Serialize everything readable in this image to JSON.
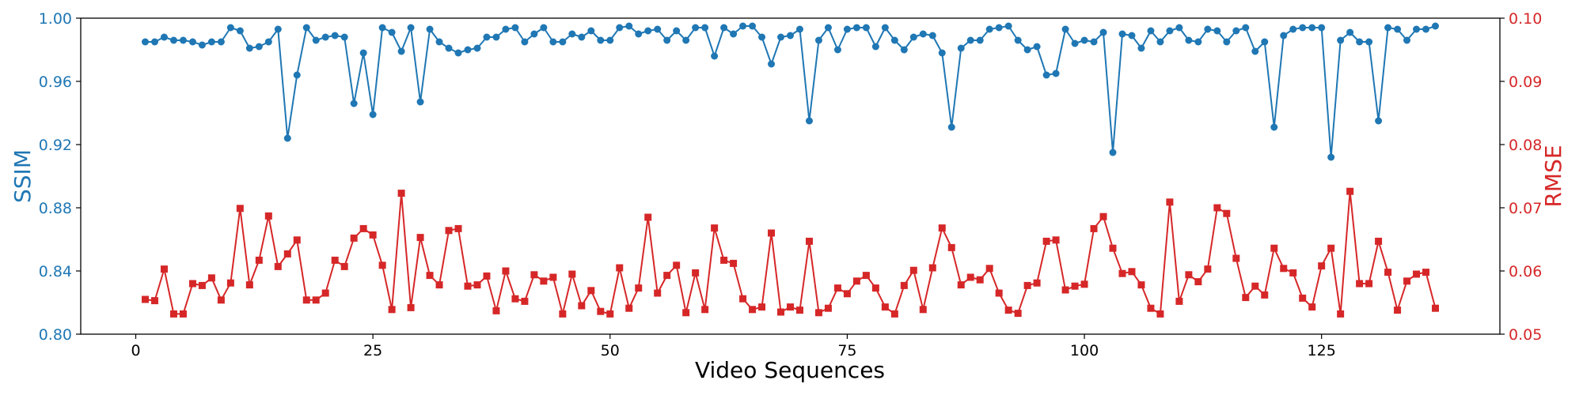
{
  "chart_data": {
    "type": "line",
    "xlabel": "Video Sequences",
    "ylabel_left": "SSIM",
    "ylabel_right": "RMSE",
    "xlim": [
      -5.8,
      143.8
    ],
    "x_ticks": [
      "0",
      "25",
      "50",
      "75",
      "100",
      "125"
    ],
    "x_tick_values": [
      0,
      25,
      50,
      75,
      100,
      125
    ],
    "ylim_left": [
      0.8,
      1.0
    ],
    "y_ticks_left": [
      "0.80",
      "0.84",
      "0.88",
      "0.92",
      "0.96",
      "1.00"
    ],
    "ylim_right": [
      0.05,
      0.1
    ],
    "y_ticks_right": [
      "0.05",
      "0.06",
      "0.07",
      "0.08",
      "0.09",
      "0.10"
    ],
    "colors": {
      "ssim": "#1f77b4",
      "rmse": "#d62728",
      "axes": "#000000"
    },
    "grid": false,
    "series": [
      {
        "axis": "left",
        "marker": "circle",
        "x_start": 1,
        "values": [
          0.985,
          0.985,
          0.988,
          0.986,
          0.986,
          0.985,
          0.983,
          0.985,
          0.985,
          0.994,
          0.992,
          0.981,
          0.982,
          0.985,
          0.993,
          0.924,
          0.964,
          0.994,
          0.986,
          0.988,
          0.989,
          0.988,
          0.946,
          0.978,
          0.939,
          0.994,
          0.991,
          0.979,
          0.994,
          0.947,
          0.993,
          0.985,
          0.981,
          0.978,
          0.98,
          0.981,
          0.988,
          0.988,
          0.993,
          0.994,
          0.985,
          0.99,
          0.994,
          0.985,
          0.985,
          0.99,
          0.988,
          0.992,
          0.986,
          0.986,
          0.994,
          0.995,
          0.99,
          0.992,
          0.993,
          0.986,
          0.992,
          0.986,
          0.994,
          0.994,
          0.976,
          0.994,
          0.99,
          0.995,
          0.995,
          0.988,
          0.971,
          0.988,
          0.989,
          0.993,
          0.935,
          0.986,
          0.994,
          0.98,
          0.993,
          0.994,
          0.994,
          0.982,
          0.994,
          0.986,
          0.98,
          0.988,
          0.99,
          0.989,
          0.978,
          0.931,
          0.981,
          0.986,
          0.986,
          0.993,
          0.994,
          0.995,
          0.986,
          0.98,
          0.982,
          0.964,
          0.965,
          0.993,
          0.984,
          0.986,
          0.985,
          0.991,
          0.915,
          0.99,
          0.989,
          0.981,
          0.992,
          0.985,
          0.992,
          0.994,
          0.986,
          0.985,
          0.993,
          0.992,
          0.985,
          0.992,
          0.994,
          0.979,
          0.985,
          0.931,
          0.989,
          0.993,
          0.994,
          0.994,
          0.994,
          0.912,
          0.986,
          0.991,
          0.985,
          0.985,
          0.935,
          0.994,
          0.993,
          0.986,
          0.993,
          0.993,
          0.995
        ]
      },
      {
        "axis": "right",
        "marker": "square",
        "x_start": 1,
        "values": [
          0.0555,
          0.0553,
          0.0603,
          0.0532,
          0.0532,
          0.058,
          0.0577,
          0.0589,
          0.0554,
          0.0581,
          0.0699,
          0.0578,
          0.0617,
          0.0687,
          0.0607,
          0.0627,
          0.0649,
          0.0554,
          0.0554,
          0.0565,
          0.0617,
          0.0607,
          0.0652,
          0.0667,
          0.0657,
          0.0609,
          0.0539,
          0.0723,
          0.0542,
          0.0653,
          0.0593,
          0.0578,
          0.0664,
          0.0667,
          0.0576,
          0.0578,
          0.0592,
          0.0537,
          0.06,
          0.0556,
          0.0552,
          0.0594,
          0.0584,
          0.059,
          0.0532,
          0.0595,
          0.0545,
          0.0569,
          0.0536,
          0.0532,
          0.0605,
          0.0541,
          0.0573,
          0.0685,
          0.0565,
          0.0593,
          0.0609,
          0.0534,
          0.0597,
          0.0539,
          0.0668,
          0.0617,
          0.0612,
          0.0556,
          0.0539,
          0.0543,
          0.066,
          0.0535,
          0.0543,
          0.0538,
          0.0647,
          0.0534,
          0.0541,
          0.0573,
          0.0564,
          0.0584,
          0.0593,
          0.0573,
          0.0543,
          0.0532,
          0.0577,
          0.0601,
          0.0539,
          0.0605,
          0.0668,
          0.0637,
          0.0578,
          0.059,
          0.0586,
          0.0604,
          0.0565,
          0.0538,
          0.0533,
          0.0577,
          0.0581,
          0.0647,
          0.0649,
          0.057,
          0.0576,
          0.0579,
          0.0667,
          0.0686,
          0.0636,
          0.0596,
          0.0599,
          0.0578,
          0.0541,
          0.0532,
          0.0709,
          0.0552,
          0.0594,
          0.0583,
          0.0603,
          0.07,
          0.0691,
          0.062,
          0.0558,
          0.0576,
          0.0562,
          0.0636,
          0.0604,
          0.0597,
          0.0557,
          0.0543,
          0.0608,
          0.0636,
          0.0532,
          0.0726,
          0.058,
          0.058,
          0.0647,
          0.0598,
          0.0538,
          0.0584,
          0.0595,
          0.0598,
          0.0541
        ]
      }
    ]
  }
}
